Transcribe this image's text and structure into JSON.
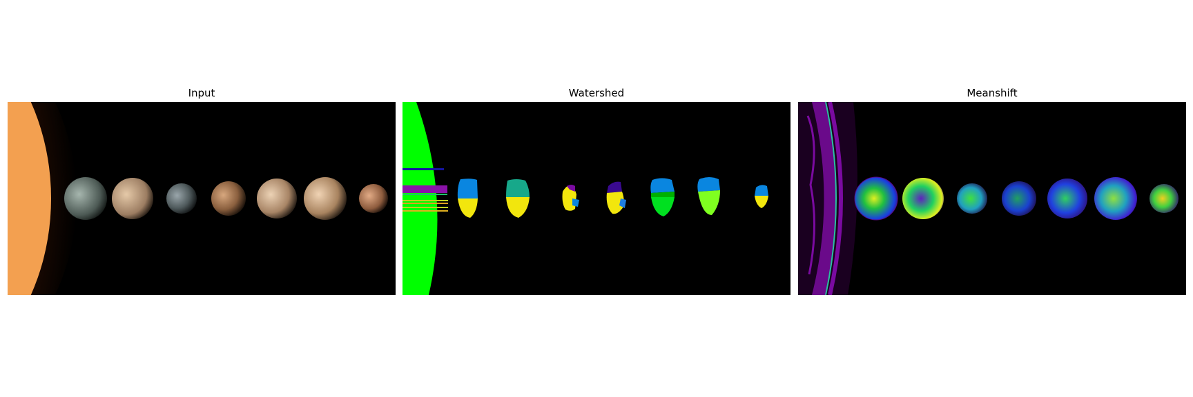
{
  "figure": {
    "panels": [
      {
        "title": "Input"
      },
      {
        "title": "Watershed"
      },
      {
        "title": "Meanshift"
      }
    ]
  },
  "colors": {
    "background": "#000000",
    "sun": "#f7a04d",
    "watershed_green": "#00ff00",
    "watershed_blue": "#0a86e0",
    "watershed_yellow": "#f2e60d",
    "watershed_teal": "#17a88a",
    "meanshift_purple": "#7a0aa0"
  }
}
